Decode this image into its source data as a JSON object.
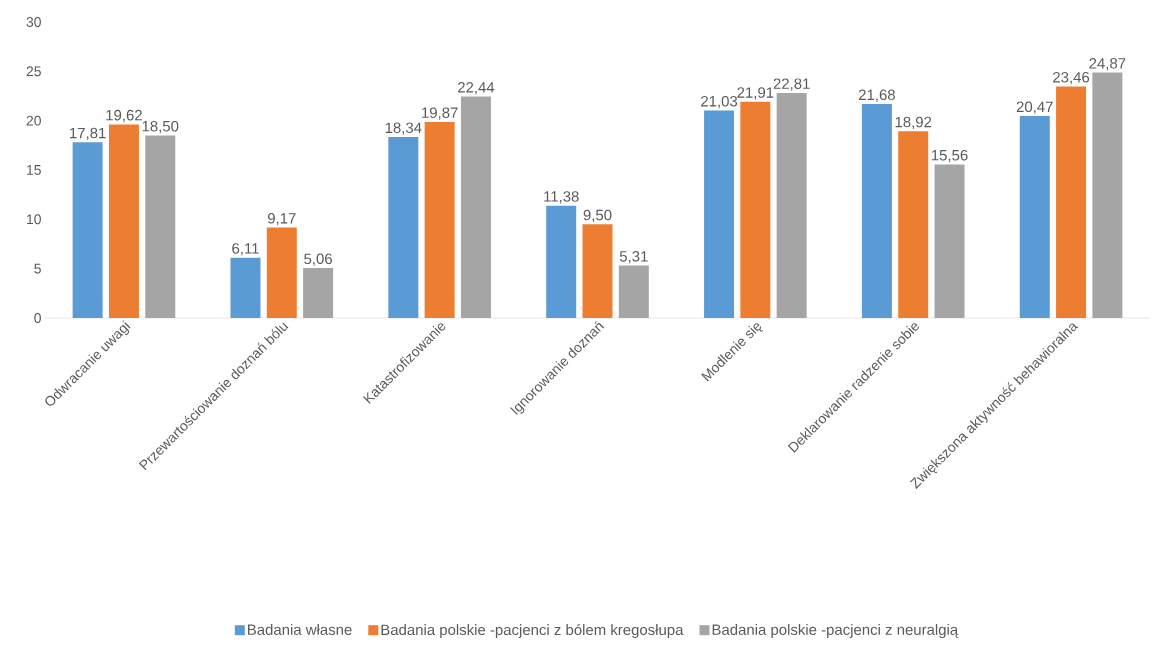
{
  "chart_data": {
    "type": "bar",
    "categories": [
      "Odwracanie uwagi",
      "Przewartościowanie doznań bólu",
      "Katastrofizowanie",
      "Ignorowanie doznań",
      "Modlenie się",
      "Deklarowanie radzenie sobie",
      "Zwiększona aktywność behawioralna"
    ],
    "series": [
      {
        "name": "Badania własne",
        "color": "#5b9bd5",
        "values": [
          17.81,
          6.11,
          18.34,
          11.38,
          21.03,
          21.68,
          20.47
        ],
        "value_labels": [
          "17,81",
          "6,11",
          "18,34",
          "11,38",
          "21,03",
          "21,68",
          "20,47"
        ]
      },
      {
        "name": "Badania polskie -pacjenci z bólem kregosłupa",
        "color": "#ed7d31",
        "values": [
          19.62,
          9.17,
          19.87,
          9.5,
          21.91,
          18.92,
          23.46
        ],
        "value_labels": [
          "19,62",
          "9,17",
          "19,87",
          "9,50",
          "21,91",
          "18,92",
          "23,46"
        ]
      },
      {
        "name": "Badania polskie -pacjenci z neuralgią",
        "color": "#a5a5a5",
        "values": [
          18.5,
          5.06,
          22.44,
          5.31,
          22.81,
          15.56,
          24.87
        ],
        "value_labels": [
          "18,50",
          "5,06",
          "22,44",
          "5,31",
          "22,81",
          "15,56",
          "24,87"
        ]
      }
    ],
    "ylim": [
      0,
      30
    ],
    "yticks": [
      0,
      5,
      10,
      15,
      20,
      25,
      30
    ],
    "legend": "bottom"
  }
}
